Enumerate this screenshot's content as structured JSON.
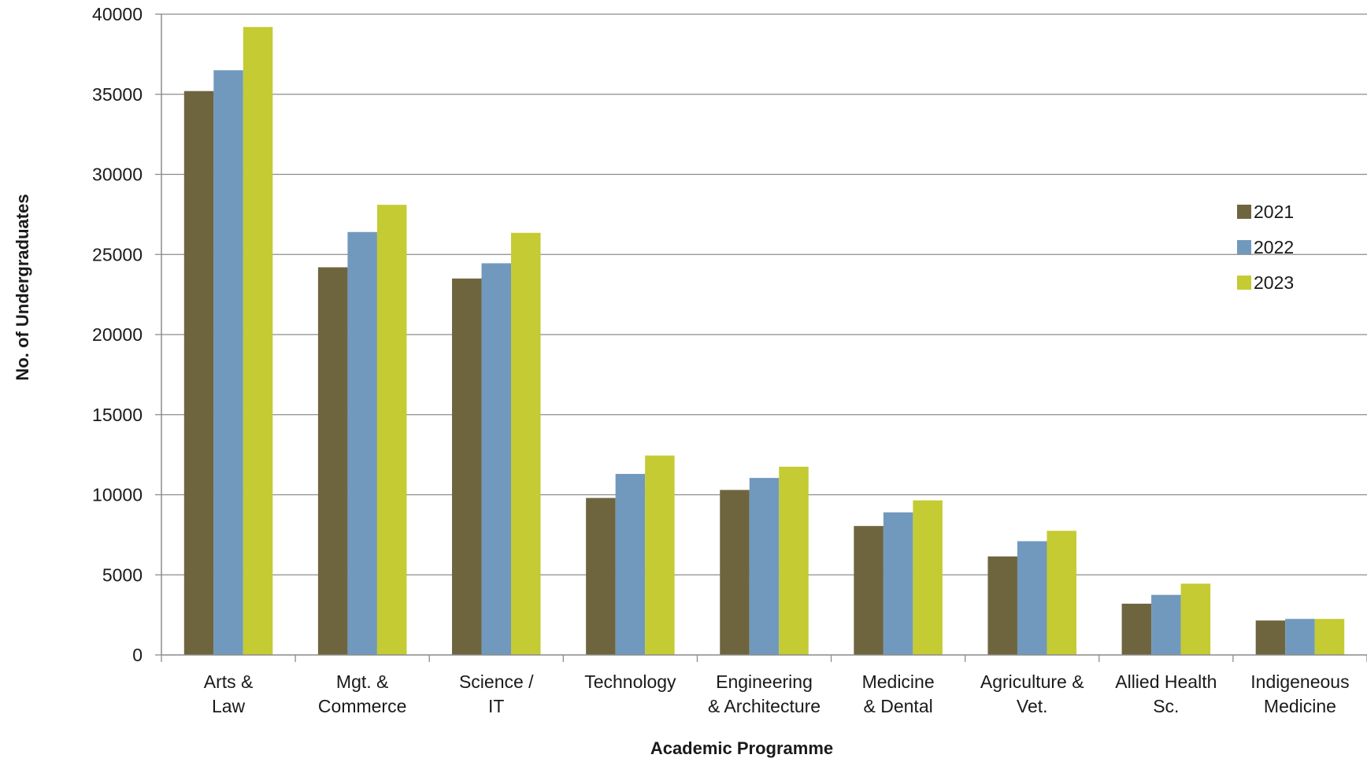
{
  "chart_data": {
    "type": "bar",
    "title": "",
    "xlabel": "Academic Programme",
    "ylabel": "No. of Undergraduates",
    "ylim": [
      0,
      40000
    ],
    "yticks": [
      0,
      5000,
      10000,
      15000,
      20000,
      25000,
      30000,
      35000,
      40000
    ],
    "grid": true,
    "legend_position": "right",
    "categories": [
      [
        "Arts &",
        "Law"
      ],
      [
        "Mgt. &",
        "Commerce"
      ],
      [
        "Science /",
        "IT"
      ],
      [
        "Technology"
      ],
      [
        "Engineering",
        "& Architecture"
      ],
      [
        "Medicine",
        "& Dental"
      ],
      [
        "Agriculture &",
        "Vet."
      ],
      [
        "Allied Health",
        "Sc."
      ],
      [
        "Indigeneous",
        "Medicine"
      ]
    ],
    "series": [
      {
        "name": "2021",
        "color": "#6e653f",
        "values": [
          35200,
          24200,
          23500,
          9800,
          10300,
          8050,
          6150,
          3200,
          2150
        ]
      },
      {
        "name": "2022",
        "color": "#7199bd",
        "values": [
          36500,
          26400,
          24450,
          11300,
          11050,
          8900,
          7100,
          3750,
          2250
        ]
      },
      {
        "name": "2023",
        "color": "#c4cb33",
        "values": [
          39200,
          28100,
          26350,
          12450,
          11750,
          9650,
          7750,
          4450,
          2250
        ]
      }
    ]
  }
}
